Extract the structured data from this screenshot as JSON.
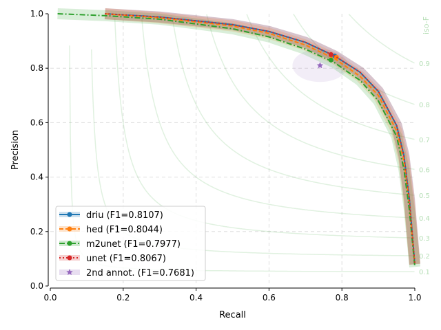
{
  "chart_data": {
    "type": "line",
    "xlabel": "Recall",
    "ylabel": "Precision",
    "xlim": [
      0,
      1
    ],
    "ylim": [
      0,
      1
    ],
    "xticks": [
      "0.0",
      "0.2",
      "0.4",
      "0.6",
      "0.8",
      "1.0"
    ],
    "yticks": [
      "0.0",
      "0.2",
      "0.4",
      "0.6",
      "0.8",
      "1.0"
    ],
    "grid": true,
    "legend_position": "lower-left",
    "iso_f_label": "iso-F",
    "iso_f": [
      "0.1",
      "0.2",
      "0.3",
      "0.4",
      "0.5",
      "0.6",
      "0.7",
      "0.8",
      "0.9"
    ],
    "series": [
      {
        "name": "driu (F1=0.8107)",
        "color": "#1f77b4",
        "dash": "",
        "op": [
          0.78,
          0.845
        ],
        "x": [
          0.15,
          0.3,
          0.5,
          0.6,
          0.7,
          0.78,
          0.85,
          0.9,
          0.95,
          0.97,
          0.985,
          0.995,
          1.0
        ],
        "y": [
          1.0,
          0.988,
          0.96,
          0.935,
          0.895,
          0.845,
          0.785,
          0.715,
          0.59,
          0.48,
          0.32,
          0.16,
          0.08
        ]
      },
      {
        "name": "hed (F1=0.8044)",
        "color": "#ff7f0e",
        "dash": "6,3",
        "op": [
          0.785,
          0.84
        ],
        "x": [
          0.15,
          0.3,
          0.5,
          0.6,
          0.7,
          0.78,
          0.85,
          0.9,
          0.95,
          0.97,
          0.985,
          0.995,
          1.0
        ],
        "y": [
          1.0,
          0.985,
          0.955,
          0.928,
          0.885,
          0.835,
          0.77,
          0.7,
          0.57,
          0.46,
          0.3,
          0.15,
          0.08
        ]
      },
      {
        "name": "m2unet (F1=0.7977)",
        "color": "#2ca02c",
        "dash": "8,3,2,3",
        "op": [
          0.77,
          0.83
        ],
        "x": [
          0.02,
          0.15,
          0.3,
          0.5,
          0.6,
          0.7,
          0.78,
          0.85,
          0.9,
          0.95,
          0.97,
          0.985,
          0.995,
          1.0
        ],
        "y": [
          1.0,
          0.993,
          0.98,
          0.945,
          0.915,
          0.87,
          0.82,
          0.755,
          0.68,
          0.55,
          0.43,
          0.28,
          0.14,
          0.07
        ]
      },
      {
        "name": "unet (F1=0.8067)",
        "color": "#d62728",
        "dash": "2,3",
        "op": [
          0.77,
          0.85
        ],
        "x": [
          0.15,
          0.3,
          0.5,
          0.6,
          0.7,
          0.78,
          0.85,
          0.9,
          0.95,
          0.97,
          0.985,
          0.995,
          1.0
        ],
        "y": [
          1.0,
          0.988,
          0.96,
          0.935,
          0.895,
          0.845,
          0.785,
          0.715,
          0.59,
          0.48,
          0.32,
          0.16,
          0.08
        ]
      },
      {
        "name": "2nd annot. (F1=0.7681)",
        "color": "#9467bd",
        "marker": "star",
        "op": [
          0.74,
          0.81
        ]
      }
    ]
  }
}
